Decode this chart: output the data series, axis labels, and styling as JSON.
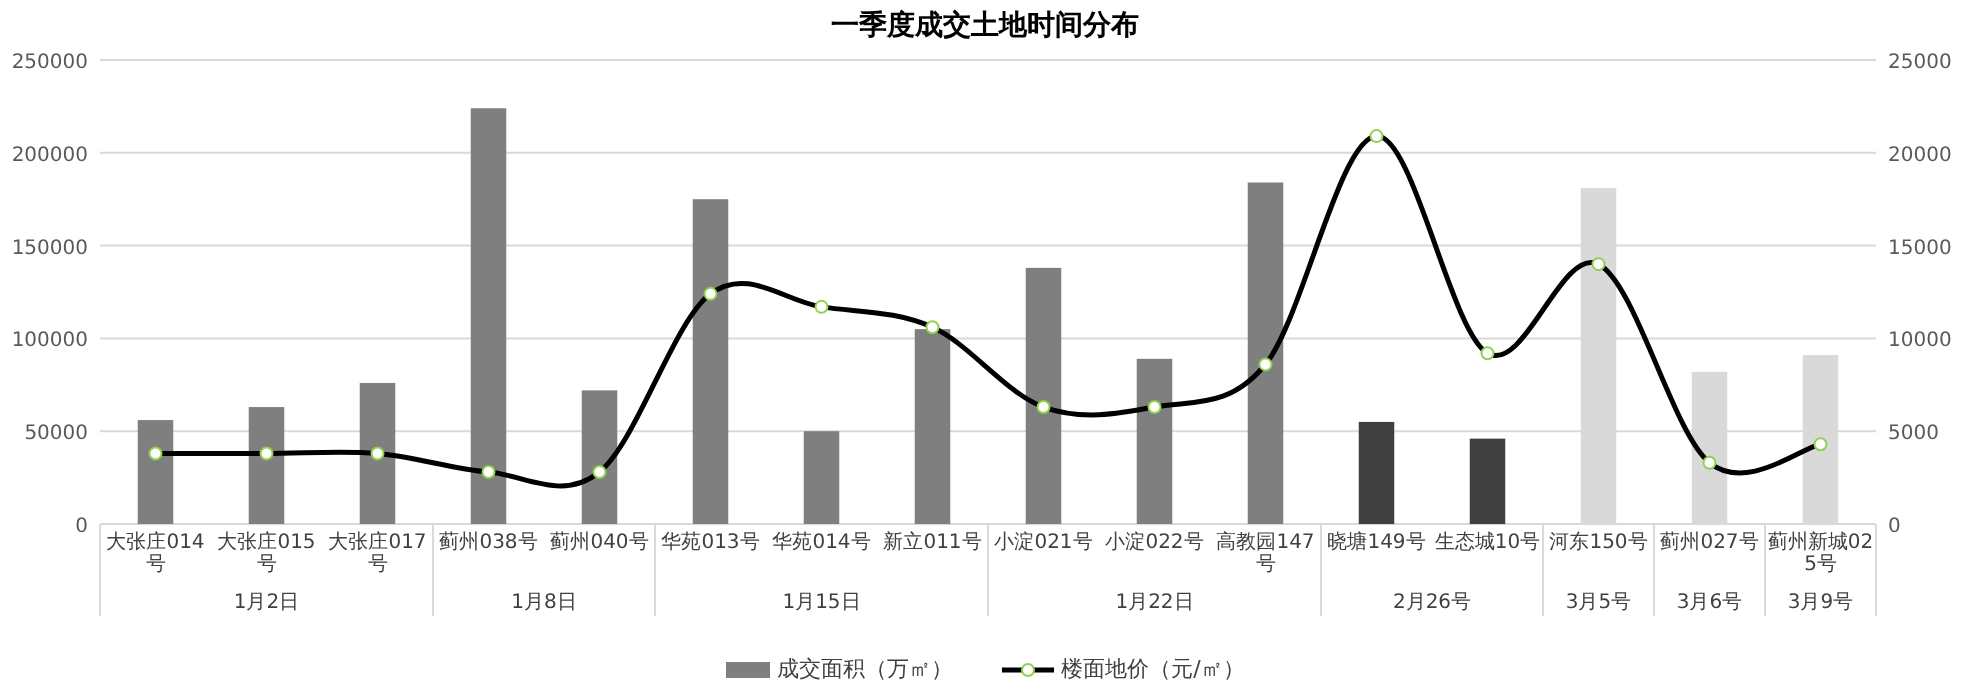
{
  "chart_data": {
    "type": "bar",
    "title": "一季度成交土地时间分布",
    "categories": [
      "大张庄014号",
      "大张庄015号",
      "大张庄017号",
      "蓟州038号",
      "蓟州040号",
      "华苑013号",
      "华苑014号",
      "新立011号",
      "小淀021号",
      "小淀022号",
      "高教园147号",
      "晓塘149号",
      "生态城10号",
      "河东150号",
      "蓟州027号",
      "蓟州新城025号"
    ],
    "series": [
      {
        "name": "成交面积（万㎡）",
        "color": "#7f7f7f",
        "colors": [
          "#7f7f7f",
          "#7f7f7f",
          "#7f7f7f",
          "#7f7f7f",
          "#7f7f7f",
          "#7f7f7f",
          "#7f7f7f",
          "#7f7f7f",
          "#7f7f7f",
          "#7f7f7f",
          "#7f7f7f",
          "#404040",
          "#404040",
          "#d9d9d9",
          "#d9d9d9",
          "#d9d9d9"
        ],
        "values": [
          56000,
          63000,
          76000,
          224000,
          72000,
          175000,
          50000,
          105000,
          138000,
          89000,
          184000,
          55000,
          46000,
          181000,
          82000,
          91000
        ]
      },
      {
        "name": "楼面地价（元/㎡）",
        "type": "line",
        "axis": "y2",
        "color": "#000000",
        "values": [
          3800,
          3800,
          3800,
          2800,
          2800,
          12400,
          11700,
          10600,
          6300,
          6300,
          8600,
          20900,
          9200,
          14000,
          3300,
          4300
        ]
      }
    ],
    "annotations": [
      "1月2日",
      "1月8日",
      "1月15日",
      "1月22日",
      "2月26号",
      "3月5号",
      "3月6号",
      "3月9号"
    ],
    "ylim": [
      0,
      250000
    ],
    "yticks": [
      0,
      50000,
      100000,
      150000,
      200000,
      250000
    ],
    "y2lim": [
      0,
      25000
    ],
    "y2ticks": [
      0,
      5000,
      10000,
      15000,
      20000,
      25000
    ],
    "grid": "y",
    "legend": "bottom",
    "marker": "circle"
  }
}
